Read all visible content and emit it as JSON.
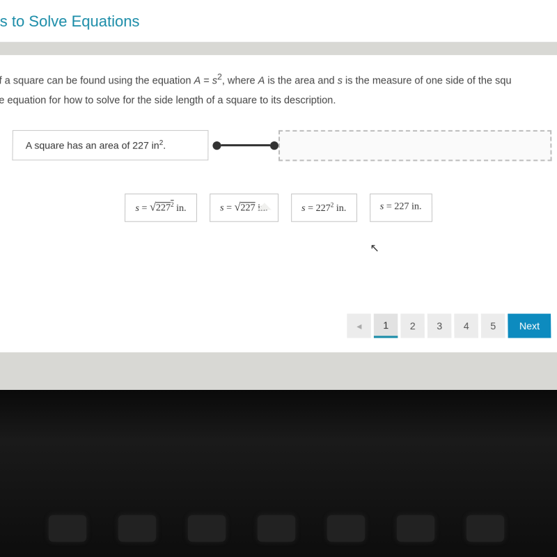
{
  "header": {
    "title_fragment": "ts to Solve Equations",
    "title_color": "#1a8ca8"
  },
  "problem": {
    "line1_prefix": "f a square can be found using the equation ",
    "line1_eq_a": "A",
    "line1_eq_mid": " = ",
    "line1_eq_s": "s",
    "line1_eq_sup": "2",
    "line1_mid": ", where ",
    "line1_A2": "A",
    "line1_mid2": " is the area and ",
    "line1_s2": "s",
    "line1_end": " is the measure of one side of the squ",
    "line2": "e equation for how to solve for the side length of a square to its description.",
    "match_label": "A square has an area of 227 in",
    "match_sup": "2",
    "match_suffix": "."
  },
  "choices": [
    {
      "s": "s",
      "eq": " = ",
      "rad": "√",
      "val": "227",
      "sup": "2",
      "unit": " in."
    },
    {
      "s": "s",
      "eq": " = ",
      "rad": "√",
      "val": "227",
      "sup": "",
      "unit": " in."
    },
    {
      "s": "s",
      "eq": " = ",
      "rad": "",
      "val": "227",
      "sup": "2",
      "unit": " in."
    },
    {
      "s": "s",
      "eq": " = ",
      "rad": "",
      "val": "227",
      "sup": "",
      "unit": " in."
    }
  ],
  "nav": {
    "prev": "◂",
    "pages": [
      "1",
      "2",
      "3",
      "4",
      "5"
    ],
    "active_index": 0,
    "next": "Next"
  },
  "colors": {
    "panel_bg": "#ffffff",
    "page_bg": "#d8d8d4",
    "accent": "#0d8bbf",
    "border": "#c8c8c8"
  }
}
